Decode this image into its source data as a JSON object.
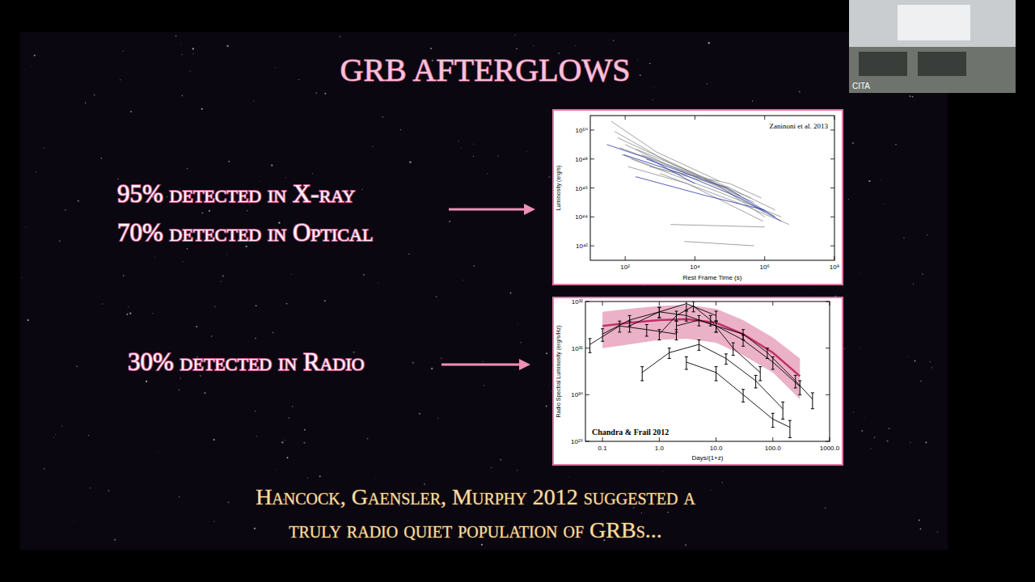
{
  "slide": {
    "title": "GRB AFTERGLOWS",
    "items": [
      "95% detected in X-ray",
      "70% detected in Optical",
      "30% detected in Radio"
    ],
    "footnote": [
      "Hancock, Gaensler, Murphy 2012 suggested a",
      "truly radio quiet population of GRBs..."
    ],
    "webcam_label": "CITA"
  },
  "chart_data": [
    {
      "type": "line",
      "log": true,
      "annotation": "Zaninoni et al. 2013",
      "x_label": "Rest Frame Time (s)",
      "y_label": "Luminosity (erg/s)",
      "xlim": [
        10,
        100000000
      ],
      "ylim": [
        1e+41,
        1e+51
      ],
      "xticks": [
        {
          "value": 100,
          "label": "10²"
        },
        {
          "value": 10000,
          "label": "10⁴"
        },
        {
          "value": 1000000,
          "label": "10⁶"
        },
        {
          "value": 100000000,
          "label": "10⁸"
        }
      ],
      "yticks": [
        {
          "value": 1e+42,
          "label": "10⁴²"
        },
        {
          "value": 1e+44,
          "label": "10⁴⁴"
        },
        {
          "value": 1e+46,
          "label": "10⁴⁶"
        },
        {
          "value": 1e+48,
          "label": "10⁴⁸"
        },
        {
          "value": 1e+50,
          "label": "10⁵⁰"
        }
      ],
      "series": [
        {
          "color": "#8a8a8a",
          "x": [
            60,
            10000,
            1000000
          ],
          "values": [
            3e+49,
            1e+47,
            2e+44
          ]
        },
        {
          "color": "#8a8a8a",
          "x": [
            100,
            3000,
            500000
          ],
          "values": [
            1e+49,
            2e+47,
            1e+45
          ]
        },
        {
          "color": "#8a8a8a",
          "x": [
            200,
            100000,
            2000000
          ],
          "values": [
            5e+48,
            1e+46,
            3e+44
          ]
        },
        {
          "color": "#8a8a8a",
          "x": [
            50,
            2000,
            200000
          ],
          "values": [
            8e+49,
            5e+47,
            3e+45
          ]
        },
        {
          "color": "#8a8a8a",
          "x": [
            300,
            30000,
            1000000
          ],
          "values": [
            2e+48,
            3e+46,
            1e+44
          ]
        },
        {
          "color": "#8a8a8a",
          "x": [
            80,
            1000,
            100000
          ],
          "values": [
            2e+48,
            2e+47,
            1e+46
          ]
        },
        {
          "color": "#8a8a8a",
          "x": [
            150,
            50000,
            3000000
          ],
          "values": [
            1e+48,
            5e+45,
            1e+44
          ]
        },
        {
          "color": "#8a8a8a",
          "x": [
            500,
            100000,
            800000
          ],
          "values": [
            3e+47,
            2e+46,
            2e+45
          ]
        },
        {
          "color": "#8a8a8a",
          "x": [
            40,
            800,
            50000
          ],
          "values": [
            4e+50,
            3e+48,
            3e+46
          ]
        },
        {
          "color": "#8a8a8a",
          "x": [
            1000,
            200000,
            5000000
          ],
          "values": [
            1e+47,
            8e+44,
            3e+43
          ]
        },
        {
          "color": "#8a8a8a",
          "x": [
            70,
            20000,
            400000
          ],
          "values": [
            6e+48,
            4e+46,
            2e+45
          ]
        },
        {
          "color": "#8a8a8a",
          "x": [
            120,
            6000,
            900000
          ],
          "values": [
            3e+47,
            2e+46,
            5e+43
          ]
        },
        {
          "color": "#8a8a8a",
          "x": [
            2000,
            1000000
          ],
          "values": [
            3e+43,
            2e+43
          ]
        },
        {
          "color": "#8a8a8a",
          "x": [
            5000,
            500000
          ],
          "values": [
            2e+42,
            1e+42
          ]
        },
        {
          "color": "#2a3aa8",
          "x": [
            200,
            20000,
            1000000
          ],
          "values": [
            6e+46,
            3e+45,
            3e+44
          ]
        },
        {
          "color": "#2a3aa8",
          "x": [
            30,
            500,
            10000
          ],
          "values": [
            1e+49,
            1e+48,
            2e+46
          ]
        },
        {
          "color": "#2a3aa8",
          "x": [
            90,
            4000,
            200000,
            3000000
          ],
          "values": [
            2e+48,
            1e+47,
            2e+45,
            5e+43
          ]
        },
        {
          "color": "#2a3aa8",
          "x": [
            400,
            80000,
            2000000
          ],
          "values": [
            1e+48,
            1e+46,
            1e+44
          ]
        }
      ]
    },
    {
      "type": "line",
      "log": true,
      "annotation": "Chandra & Frail 2012",
      "x_label": "Days/(1+z)",
      "y_label": "Radio Spectral Luminosity (erg/s/Hz)",
      "xlim": [
        0.05,
        1000
      ],
      "ylim": [
        1e+29,
        1e+32
      ],
      "xticks": [
        0.1,
        {
          "value": 1,
          "label": "1.0"
        },
        {
          "value": 10,
          "label": "10.0"
        },
        {
          "value": 100,
          "label": "100.0"
        },
        {
          "value": 1000,
          "label": "1000.0"
        }
      ],
      "yticks": [
        {
          "value": 1e+29,
          "label": "10²⁹"
        },
        {
          "value": 1e+30,
          "label": "10³⁰"
        },
        {
          "value": 1e+31,
          "label": "10³¹"
        },
        {
          "value": 1e+32,
          "label": "10³²"
        }
      ],
      "band": {
        "color": "#e8a3bd",
        "x": [
          0.1,
          0.3,
          1,
          3,
          10,
          30,
          100,
          300
        ],
        "median": [
          3e+31,
          3.5e+31,
          4e+31,
          4.2e+31,
          3.5e+31,
          2e+31,
          8e+30,
          2.5e+30
        ],
        "lower": [
          1e+31,
          1.2e+31,
          1.5e+31,
          1.6e+31,
          1.3e+31,
          7e+30,
          3e+30,
          8e+29
        ],
        "upper": [
          6e+31,
          7e+31,
          8e+31,
          8.5e+31,
          7e+31,
          4e+31,
          1.7e+31,
          6e+30
        ]
      },
      "series": [
        {
          "color": "#000000",
          "x": [
            0.1,
            0.3,
            1,
            3,
            10,
            30,
            100,
            300
          ],
          "values": [
            2e+31,
            4e+31,
            6e+31,
            5e+31,
            3e+31,
            1.5e+31,
            5e+30,
            1.5e+30
          ],
          "errors": [
            6e+30,
            1e+31,
            1.5e+31,
            1.2e+31,
            8e+30,
            4e+30,
            1.5e+30,
            5e+29
          ]
        },
        {
          "color": "#000000",
          "x": [
            0.5,
            1.5,
            5,
            15,
            50,
            150
          ],
          "values": [
            3e+30,
            8e+30,
            1.2e+31,
            6e+30,
            2e+30,
            5e+29
          ],
          "errors": [
            1e+30,
            2e+30,
            3e+30,
            1.5e+30,
            6e+29,
            2e+29
          ]
        },
        {
          "color": "#000000",
          "x": [
            1,
            2,
            4,
            8,
            20,
            60
          ],
          "values": [
            2e+31,
            5e+31,
            8e+31,
            4e+31,
            1e+31,
            3e+30
          ],
          "errors": [
            5e+30,
            1.2e+31,
            2e+31,
            1e+31,
            3e+30,
            1e+30
          ]
        },
        {
          "color": "#000000",
          "x": [
            0.06,
            0.2,
            0.6,
            2
          ],
          "values": [
            1.2e+31,
            3e+31,
            2.5e+31,
            2e+31
          ],
          "errors": [
            4e+30,
            8e+30,
            7e+30,
            5e+30
          ]
        },
        {
          "color": "#000000",
          "x": [
            3,
            10,
            30,
            100,
            200
          ],
          "values": [
            5e+30,
            3e+30,
            1e+30,
            3e+29,
            2e+29
          ],
          "errors": [
            1.5e+30,
            1e+30,
            3e+29,
            1e+29,
            8e+28
          ]
        },
        {
          "color": "#000000",
          "x": [
            2,
            5,
            10,
            30,
            80,
            250,
            500
          ],
          "values": [
            3e+31,
            4e+31,
            3e+31,
            2e+31,
            8e+30,
            2e+30,
            8e+29
          ],
          "errors": [
            8e+30,
            1e+31,
            8e+30,
            5e+30,
            2e+30,
            6e+29,
            3e+29
          ]
        },
        {
          "color": "#000000",
          "x": [
            0.3,
            1,
            3,
            10
          ],
          "values": [
            3e+31,
            6e+31,
            9e+31,
            5e+31
          ],
          "errors": [
            8e+30,
            1.5e+31,
            2.5e+31,
            1.2e+31
          ]
        }
      ]
    }
  ]
}
